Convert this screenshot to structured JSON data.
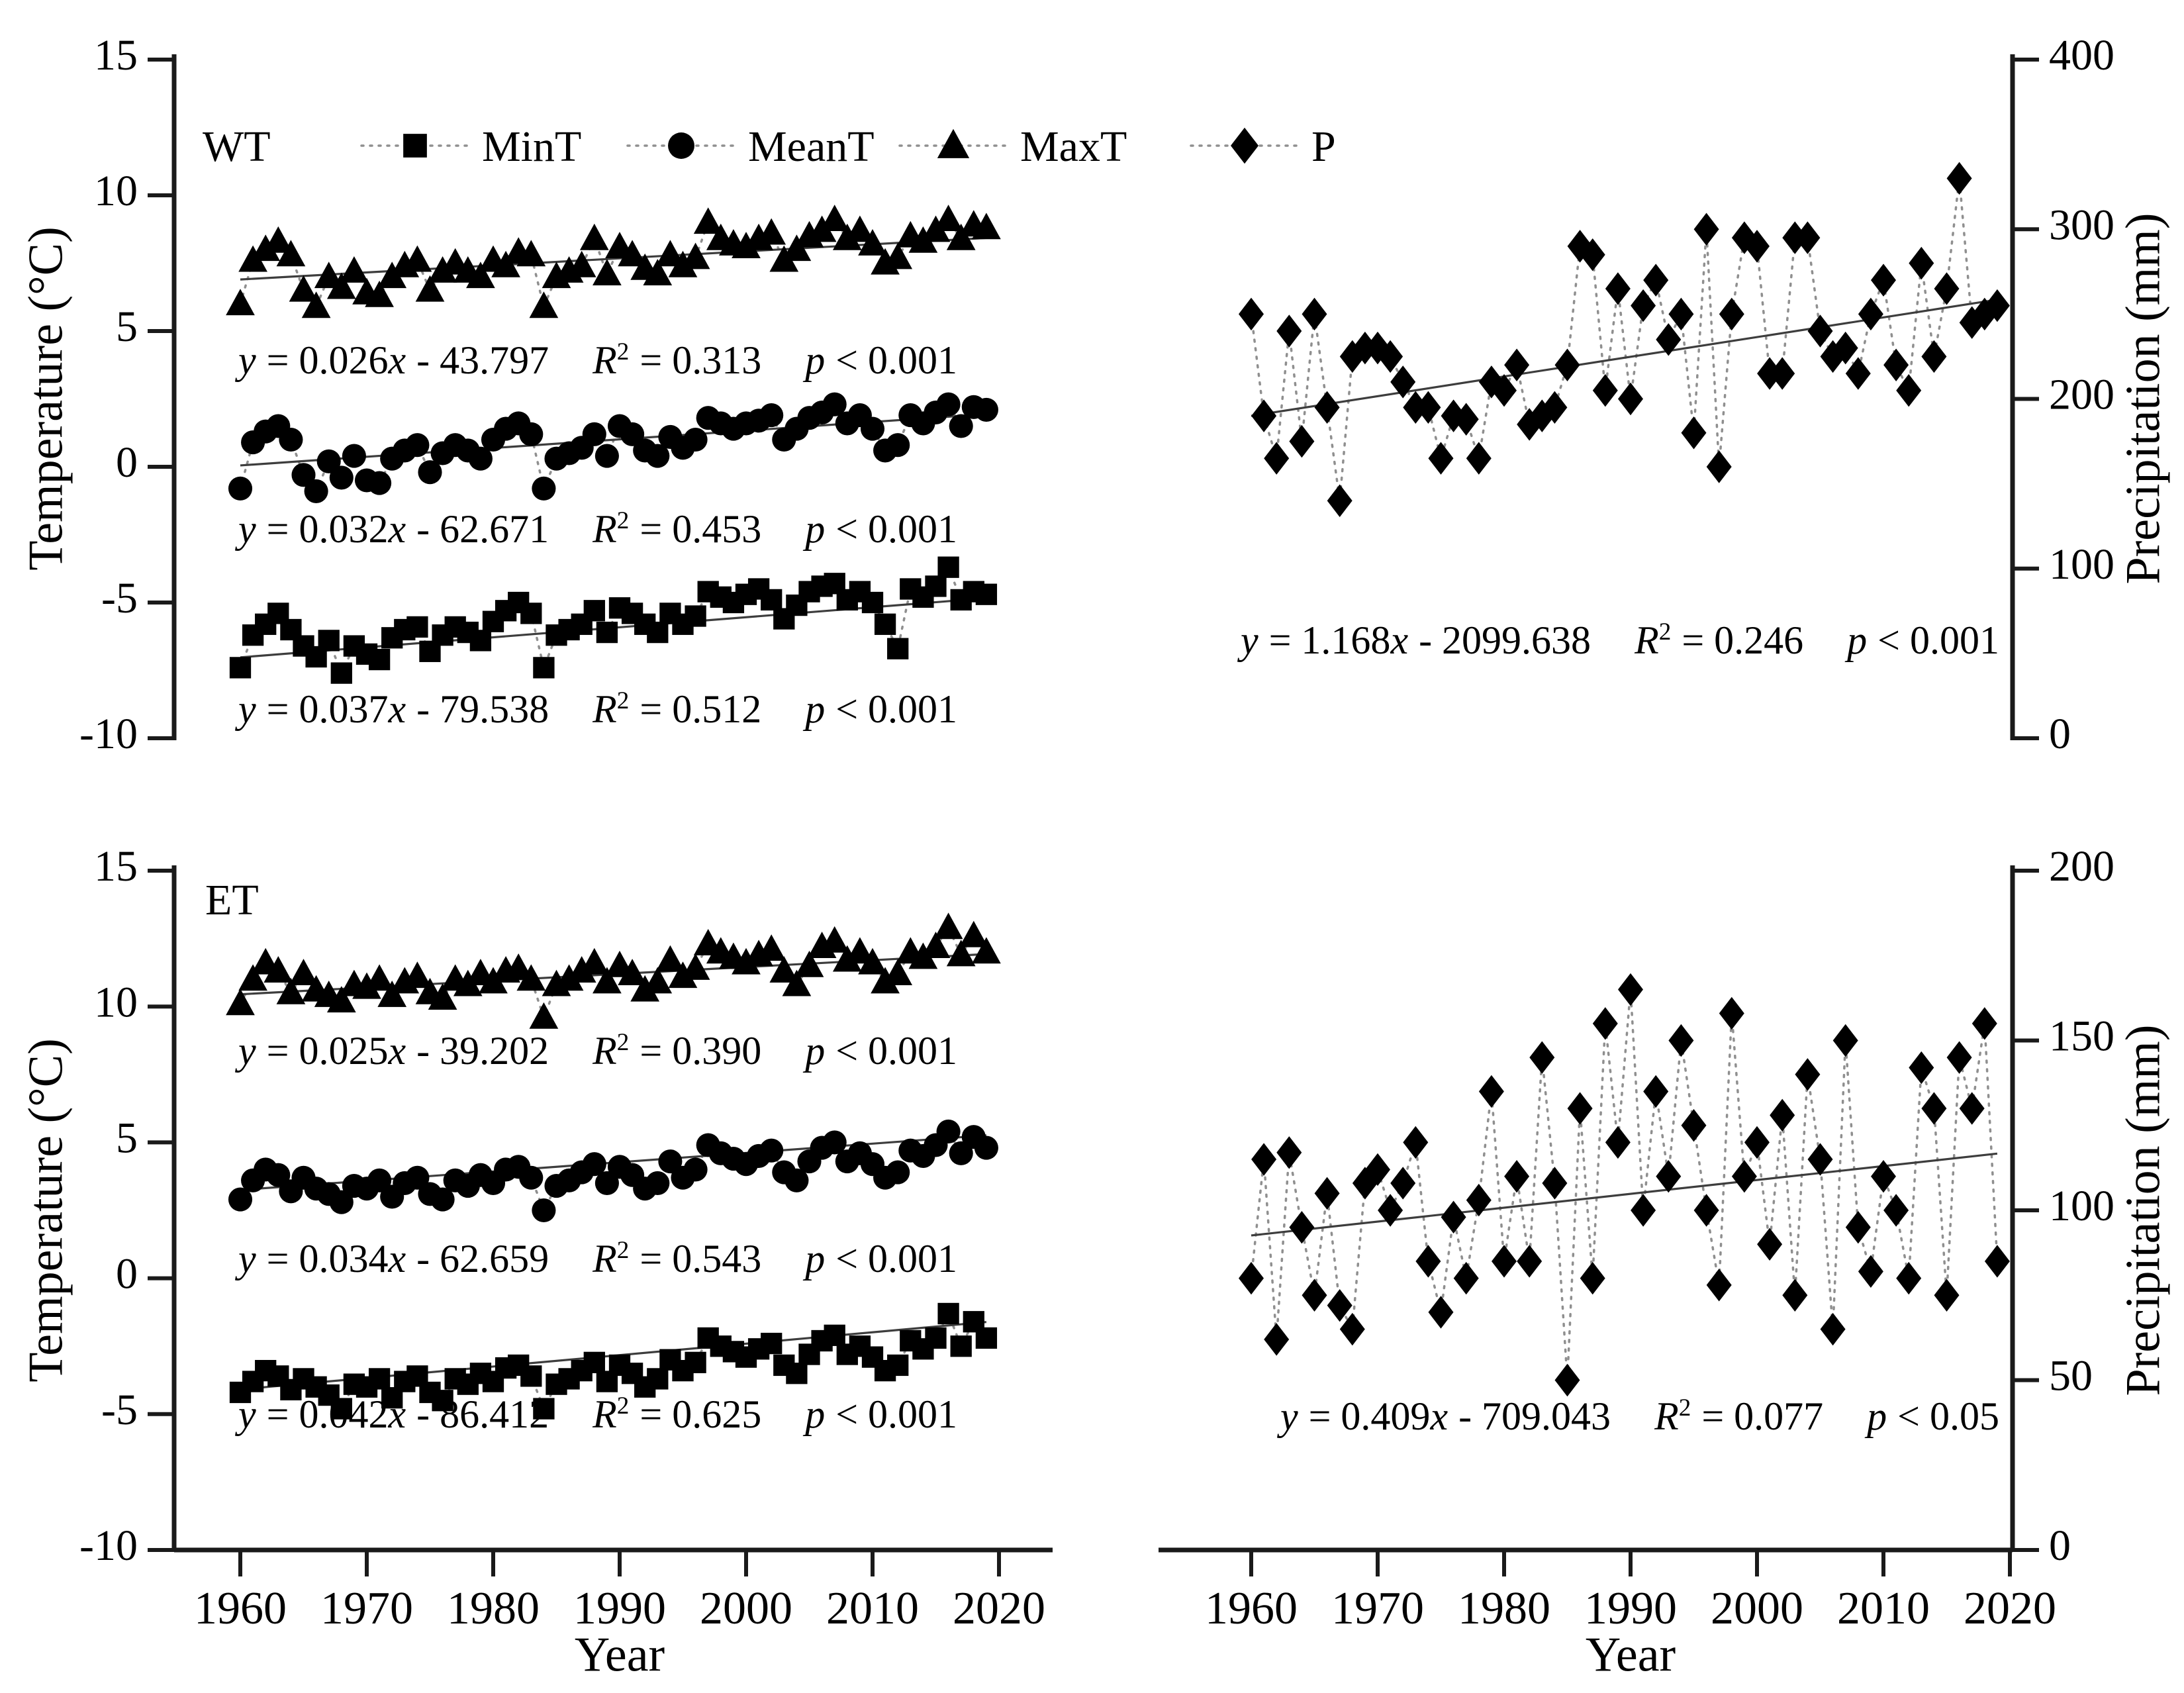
{
  "symbols": {
    "y": "y",
    "x": "x",
    "R": "R",
    "sq": "2",
    "p": "p"
  },
  "style": {
    "marker_color": "#000000",
    "connector_color": "#8f8f8f",
    "trend_color": "#3d3d3d",
    "axis_color": "#1a1a1a"
  },
  "legend": {
    "items": [
      {
        "label": "MinT",
        "marker": "square"
      },
      {
        "label": "MeanT",
        "marker": "circle"
      },
      {
        "label": "MaxT",
        "marker": "triangle"
      },
      {
        "label": "P",
        "marker": "diamond"
      }
    ]
  },
  "axes": {
    "x_label_left": "Year",
    "x_label_right": "Year",
    "x_ticks": [
      1960,
      1970,
      1980,
      1990,
      2000,
      2010,
      2020
    ],
    "temperature_label_top": "Temperature (°C)",
    "temperature_label_bottom": "Temperature (°C)",
    "precipitation_label_top": "Precipitation (mm)",
    "precipitation_label_bottom": "Precipitation (mm)"
  },
  "chart_data": [
    {
      "id": "wt-temperature",
      "type": "scatter",
      "region_label": "WT",
      "x_start": 1960,
      "x_end": 2019,
      "ylim": [
        -10,
        15
      ],
      "yticks": [
        15,
        10,
        5,
        0,
        -5,
        -10
      ],
      "series": [
        {
          "name": "MaxT",
          "marker": "triangle",
          "trend": {
            "y_start": 6.9,
            "y_end": 8.43
          },
          "eq": {
            "pre": "= 0.026",
            "post": "- 43.797",
            "r2": "= 0.313",
            "p": "< 0.001"
          },
          "values": [
            6.0,
            7.6,
            8.0,
            8.3,
            7.8,
            6.5,
            5.9,
            7.0,
            6.6,
            7.2,
            6.4,
            6.3,
            7.0,
            7.4,
            7.6,
            6.5,
            7.2,
            7.5,
            7.2,
            7.0,
            7.6,
            7.4,
            7.9,
            7.8,
            5.9,
            7.0,
            7.2,
            7.4,
            8.4,
            7.1,
            8.1,
            7.8,
            7.3,
            7.1,
            7.8,
            7.4,
            7.7,
            9.0,
            8.4,
            8.2,
            8.1,
            8.4,
            8.6,
            7.6,
            8.0,
            8.5,
            8.7,
            9.1,
            8.4,
            8.7,
            8.2,
            7.5,
            7.7,
            8.5,
            8.3,
            8.7,
            9.1,
            8.4,
            8.9,
            8.8
          ]
        },
        {
          "name": "MeanT",
          "marker": "circle",
          "trend": {
            "y_start": 0.05,
            "y_end": 1.94
          },
          "eq": {
            "pre": "= 0.032",
            "post": "- 62.671",
            "r2": "= 0.453",
            "p": "< 0.001"
          },
          "values": [
            -0.8,
            0.9,
            1.3,
            1.5,
            1.0,
            -0.3,
            -0.9,
            0.2,
            -0.4,
            0.4,
            -0.5,
            -0.6,
            0.3,
            0.6,
            0.8,
            -0.2,
            0.5,
            0.8,
            0.6,
            0.3,
            1.0,
            1.4,
            1.6,
            1.2,
            -0.8,
            0.3,
            0.5,
            0.7,
            1.2,
            0.4,
            1.5,
            1.2,
            0.6,
            0.4,
            1.1,
            0.7,
            1.0,
            1.8,
            1.6,
            1.4,
            1.6,
            1.7,
            1.9,
            1.0,
            1.4,
            1.8,
            2.0,
            2.3,
            1.6,
            1.9,
            1.4,
            0.6,
            0.8,
            1.9,
            1.6,
            2.0,
            2.3,
            1.5,
            2.2,
            2.1
          ]
        },
        {
          "name": "MinT",
          "marker": "square",
          "trend": {
            "y_start": -7.02,
            "y_end": -4.84
          },
          "eq": {
            "pre": "= 0.037",
            "post": "- 79.538",
            "r2": "= 0.512",
            "p": "< 0.001"
          },
          "values": [
            -7.4,
            -6.2,
            -5.8,
            -5.4,
            -6.0,
            -6.6,
            -7.0,
            -6.4,
            -7.6,
            -6.6,
            -6.9,
            -7.1,
            -6.3,
            -6.0,
            -5.9,
            -6.8,
            -6.2,
            -5.9,
            -6.1,
            -6.4,
            -5.7,
            -5.3,
            -5.0,
            -5.4,
            -7.4,
            -6.2,
            -6.0,
            -5.8,
            -5.3,
            -6.1,
            -5.2,
            -5.4,
            -5.8,
            -6.1,
            -5.4,
            -5.8,
            -5.5,
            -4.6,
            -4.8,
            -5.0,
            -4.7,
            -4.5,
            -4.9,
            -5.6,
            -5.1,
            -4.6,
            -4.4,
            -4.3,
            -4.9,
            -4.6,
            -5.0,
            -5.8,
            -6.7,
            -4.5,
            -4.8,
            -4.4,
            -3.7,
            -4.9,
            -4.6,
            -4.7
          ]
        }
      ]
    },
    {
      "id": "wt-precipitation",
      "type": "scatter",
      "x_start": 1960,
      "x_end": 2019,
      "ylim": [
        0,
        400
      ],
      "yticks": [
        400,
        300,
        200,
        100,
        0
      ],
      "series": [
        {
          "name": "P",
          "marker": "diamond",
          "trend": {
            "y_start": 190,
            "y_end": 258.5
          },
          "eq": {
            "pre": "= 1.168",
            "post": "- 2099.638",
            "r2": "= 0.246",
            "p": "< 0.001"
          },
          "values": [
            250,
            190,
            165,
            240,
            175,
            250,
            195,
            140,
            225,
            230,
            230,
            225,
            210,
            195,
            195,
            165,
            190,
            188,
            165,
            210,
            205,
            220,
            185,
            190,
            195,
            220,
            290,
            285,
            205,
            265,
            200,
            255,
            270,
            235,
            250,
            180,
            300,
            160,
            250,
            295,
            290,
            215,
            215,
            295,
            295,
            240,
            225,
            230,
            215,
            250,
            270,
            220,
            205,
            280,
            225,
            265,
            330,
            245,
            250,
            255
          ]
        }
      ]
    },
    {
      "id": "et-temperature",
      "type": "scatter",
      "region_label": "ET",
      "x_start": 1960,
      "x_end": 2019,
      "ylim": [
        -10,
        15
      ],
      "yticks": [
        15,
        10,
        5,
        0,
        -5,
        -10
      ],
      "series": [
        {
          "name": "MaxT",
          "marker": "triangle",
          "trend": {
            "y_start": 10.45,
            "y_end": 11.93
          },
          "eq": {
            "pre": "= 0.025",
            "post": "- 39.202",
            "r2": "= 0.390",
            "p": "< 0.001"
          },
          "values": [
            10.1,
            11.0,
            11.6,
            11.3,
            10.5,
            11.2,
            10.6,
            10.4,
            10.2,
            10.8,
            10.7,
            11.0,
            10.4,
            10.9,
            11.1,
            10.5,
            10.3,
            11.0,
            10.8,
            11.2,
            10.9,
            11.3,
            11.4,
            11.0,
            9.6,
            10.8,
            11.0,
            11.3,
            11.6,
            10.9,
            11.5,
            11.2,
            10.6,
            10.9,
            11.7,
            11.1,
            11.4,
            12.3,
            12.0,
            11.8,
            11.6,
            11.9,
            12.1,
            11.3,
            10.8,
            11.5,
            12.2,
            12.4,
            11.7,
            12.0,
            11.6,
            10.9,
            11.2,
            12.0,
            11.8,
            12.2,
            12.9,
            11.9,
            12.6,
            12.0
          ]
        },
        {
          "name": "MeanT",
          "marker": "circle",
          "trend": {
            "y_start": 3.25,
            "y_end": 5.26
          },
          "eq": {
            "pre": "= 0.034",
            "post": "- 62.659",
            "r2": "= 0.543",
            "p": "< 0.001"
          },
          "values": [
            2.9,
            3.6,
            4.0,
            3.8,
            3.2,
            3.7,
            3.3,
            3.1,
            2.8,
            3.4,
            3.3,
            3.6,
            3.0,
            3.5,
            3.7,
            3.1,
            2.9,
            3.6,
            3.4,
            3.8,
            3.5,
            4.0,
            4.1,
            3.7,
            2.5,
            3.4,
            3.6,
            3.9,
            4.2,
            3.5,
            4.1,
            3.8,
            3.3,
            3.5,
            4.3,
            3.7,
            4.0,
            4.9,
            4.6,
            4.4,
            4.2,
            4.5,
            4.7,
            3.9,
            3.6,
            4.3,
            4.8,
            5.0,
            4.3,
            4.6,
            4.2,
            3.7,
            3.9,
            4.7,
            4.5,
            4.9,
            5.4,
            4.6,
            5.2,
            4.8
          ]
        },
        {
          "name": "MinT",
          "marker": "square",
          "trend": {
            "y_start": -4.09,
            "y_end": -1.61
          },
          "eq": {
            "pre": "= 0.042",
            "post": "- 86.412",
            "r2": "= 0.625",
            "p": "< 0.001"
          },
          "values": [
            -4.2,
            -3.8,
            -3.4,
            -3.6,
            -4.1,
            -3.7,
            -4.0,
            -4.3,
            -4.8,
            -3.9,
            -4.0,
            -3.7,
            -4.4,
            -3.8,
            -3.6,
            -4.2,
            -4.5,
            -3.7,
            -3.9,
            -3.5,
            -3.8,
            -3.3,
            -3.2,
            -3.6,
            -4.8,
            -3.9,
            -3.7,
            -3.4,
            -3.1,
            -3.8,
            -3.2,
            -3.5,
            -4.0,
            -3.7,
            -3.0,
            -3.4,
            -3.1,
            -2.2,
            -2.5,
            -2.7,
            -2.9,
            -2.6,
            -2.4,
            -3.2,
            -3.5,
            -2.8,
            -2.3,
            -2.1,
            -2.8,
            -2.5,
            -2.9,
            -3.4,
            -3.2,
            -2.3,
            -2.6,
            -2.2,
            -1.3,
            -2.5,
            -1.6,
            -2.2
          ]
        }
      ]
    },
    {
      "id": "et-precipitation",
      "type": "scatter",
      "x_start": 1960,
      "x_end": 2019,
      "ylim": [
        0,
        200
      ],
      "yticks": [
        200,
        150,
        100,
        50,
        0
      ],
      "series": [
        {
          "name": "P",
          "marker": "diamond",
          "trend": {
            "y_start": 92.6,
            "y_end": 116.7
          },
          "eq": {
            "pre": "= 0.409",
            "post": "- 709.043",
            "r2": "= 0.077",
            "p": "< 0.05"
          },
          "values": [
            80,
            115,
            62,
            117,
            95,
            75,
            105,
            72,
            65,
            108,
            112,
            100,
            108,
            120,
            85,
            70,
            98,
            80,
            103,
            135,
            85,
            110,
            85,
            145,
            108,
            50,
            130,
            80,
            155,
            120,
            165,
            100,
            135,
            110,
            150,
            125,
            100,
            78,
            158,
            110,
            120,
            90,
            128,
            75,
            140,
            115,
            65,
            150,
            95,
            82,
            110,
            100,
            80,
            142,
            130,
            75,
            145,
            130,
            155,
            85
          ]
        }
      ]
    }
  ]
}
